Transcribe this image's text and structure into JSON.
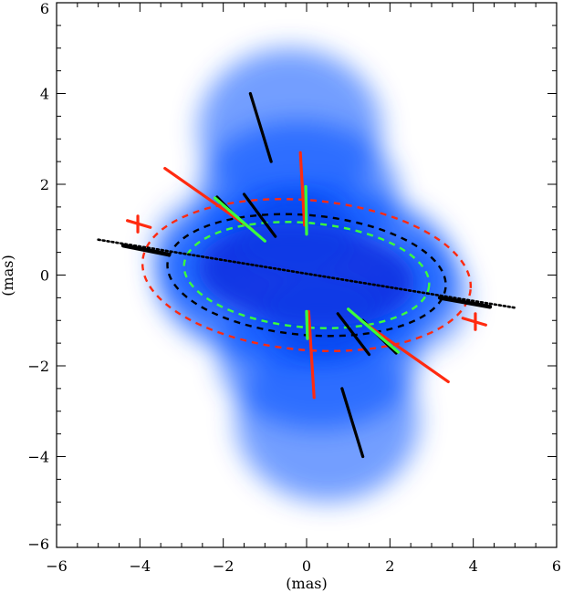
{
  "chart_data": {
    "type": "scatter",
    "xlabel": "(mas)",
    "ylabel": "(mas)",
    "xlim": [
      -6,
      6
    ],
    "ylim": [
      -6,
      6
    ],
    "x_ticks": [
      "−6",
      "−4",
      "−2",
      "0",
      "2",
      "4",
      "6"
    ],
    "y_ticks": [
      "−6",
      "−4",
      "−2",
      "0",
      "2",
      "4",
      "6"
    ],
    "colors": {
      "nebula": "#0050ff",
      "black": "#000000",
      "red": "#ff2a10",
      "green": "#3cff3c"
    },
    "major_axis_line": {
      "x": [
        -5.0,
        5.0
      ],
      "y": [
        0.78,
        -0.72
      ]
    },
    "ellipses": [
      {
        "name": "red",
        "cx": 0,
        "cy": 0,
        "rx": 3.95,
        "ry": 1.65,
        "angle_deg": -5,
        "color": "#ff2a10"
      },
      {
        "name": "black",
        "cx": 0,
        "cy": 0,
        "rx": 3.35,
        "ry": 1.32,
        "angle_deg": -5,
        "color": "#000000"
      },
      {
        "name": "green",
        "cx": 0,
        "cy": 0,
        "rx": 2.95,
        "ry": 1.15,
        "angle_deg": -5,
        "color": "#3cff3c"
      }
    ],
    "segments": [
      {
        "color": "#000000",
        "x1": -1.35,
        "y1": 4.0,
        "x2": -0.85,
        "y2": 2.5
      },
      {
        "color": "#000000",
        "x1": 0.85,
        "y1": -2.5,
        "x2": 1.35,
        "y2": -4.0
      },
      {
        "color": "#000000",
        "x1": -2.15,
        "y1": 1.72,
        "x2": -1.55,
        "y2": 1.15
      },
      {
        "color": "#000000",
        "x1": -1.5,
        "y1": 1.78,
        "x2": -0.75,
        "y2": 0.85
      },
      {
        "color": "#000000",
        "x1": 0.75,
        "y1": -0.85,
        "x2": 1.5,
        "y2": -1.75
      },
      {
        "color": "#000000",
        "x1": 1.35,
        "y1": -1.0,
        "x2": 2.15,
        "y2": -1.72
      },
      {
        "color": "#ff2a10",
        "x1": -3.4,
        "y1": 2.35,
        "x2": -1.3,
        "y2": 1.0
      },
      {
        "color": "#ff2a10",
        "x1": 1.3,
        "y1": -1.0,
        "x2": 3.4,
        "y2": -2.35
      },
      {
        "color": "#ff2a10",
        "x1": -0.15,
        "y1": 2.7,
        "x2": -0.05,
        "y2": 1.1
      },
      {
        "color": "#ff2a10",
        "x1": 0.05,
        "y1": -0.8,
        "x2": 0.18,
        "y2": -2.7
      },
      {
        "color": "#ff2a10",
        "x1": -4.3,
        "y1": 1.2,
        "x2": -3.75,
        "y2": 1.05
      },
      {
        "color": "#ff2a10",
        "x1": 3.75,
        "y1": -0.95,
        "x2": 4.3,
        "y2": -1.1
      },
      {
        "color": "#ff2a10",
        "x1": -4.05,
        "y1": 1.3,
        "x2": -4.05,
        "y2": 0.95
      },
      {
        "color": "#ff2a10",
        "x1": 4.05,
        "y1": -0.85,
        "x2": 4.05,
        "y2": -1.2
      },
      {
        "color": "#3cff3c",
        "x1": -2.2,
        "y1": 1.7,
        "x2": -1.0,
        "y2": 0.75
      },
      {
        "color": "#3cff3c",
        "x1": 1.0,
        "y1": -0.75,
        "x2": 2.2,
        "y2": -1.7
      },
      {
        "color": "#3cff3c",
        "x1": -0.02,
        "y1": 1.95,
        "x2": 0.0,
        "y2": 0.9
      },
      {
        "color": "#3cff3c",
        "x1": 0.0,
        "y1": -0.8,
        "x2": 0.02,
        "y2": -1.4
      }
    ],
    "thick_segments": [
      {
        "color": "#000000",
        "x1": -4.4,
        "y1": 0.65,
        "x2": -3.3,
        "y2": 0.45
      },
      {
        "color": "#000000",
        "x1": 3.2,
        "y1": -0.5,
        "x2": 4.4,
        "y2": -0.7
      }
    ]
  }
}
